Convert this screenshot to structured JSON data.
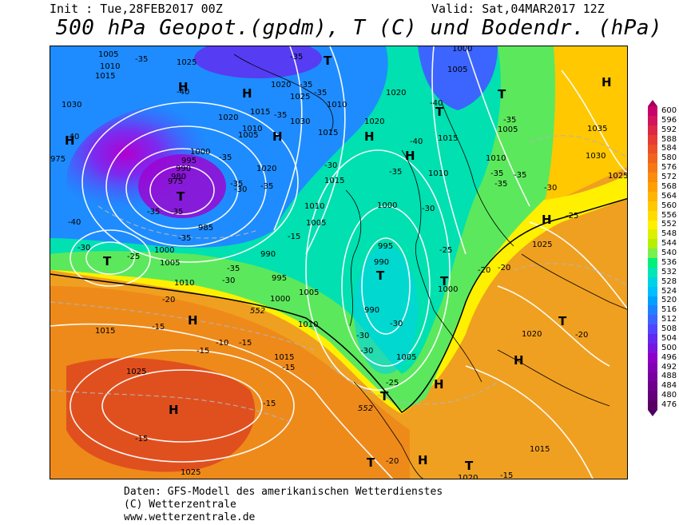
{
  "header": {
    "init": "Init : Tue,28FEB2017 00Z",
    "valid": "Valid: Sat,04MAR2017 12Z",
    "title": "500 hPa Geopot.(gpdm), T (C) und Bodendr. (hPa)"
  },
  "footer": {
    "line1": "Daten: GFS-Modell des amerikanischen Wetterdienstes",
    "line2": "(C) Wetterzentrale",
    "line3": "www.wetterzentrale.de"
  },
  "colorbar": {
    "labels": [
      "600",
      "596",
      "592",
      "588",
      "584",
      "580",
      "576",
      "572",
      "568",
      "564",
      "560",
      "556",
      "552",
      "548",
      "544",
      "540",
      "536",
      "532",
      "528",
      "524",
      "520",
      "516",
      "512",
      "508",
      "504",
      "500",
      "496",
      "492",
      "488",
      "484",
      "480",
      "476"
    ],
    "colors": [
      "#c8006e",
      "#d2145a",
      "#dc2846",
      "#e63c32",
      "#eb5028",
      "#f0641e",
      "#f57814",
      "#fa8c0a",
      "#ffa000",
      "#ffb400",
      "#ffc800",
      "#ffdc00",
      "#fff000",
      "#dcf000",
      "#b4f000",
      "#78f050",
      "#00f07a",
      "#00e6b4",
      "#00d2e6",
      "#00beff",
      "#00a0ff",
      "#1e82ff",
      "#3c64ff",
      "#5046ff",
      "#6428f0",
      "#7814dc",
      "#8c00c8",
      "#8200b4",
      "#7800a0",
      "#6e008c",
      "#640078",
      "#5a0064"
    ]
  },
  "map": {
    "pressure_labels": [
      "1005",
      "1010",
      "1015",
      "1025",
      "1020",
      "1030",
      "1035",
      "1000",
      "995",
      "990",
      "985",
      "980",
      "975",
      "1040"
    ],
    "temp_labels": [
      "-35",
      "-40",
      "-30",
      "-25",
      "-20",
      "-15",
      "-10"
    ],
    "geopot_labels": [
      "552"
    ],
    "high_marker": "H",
    "low_marker": "T"
  }
}
